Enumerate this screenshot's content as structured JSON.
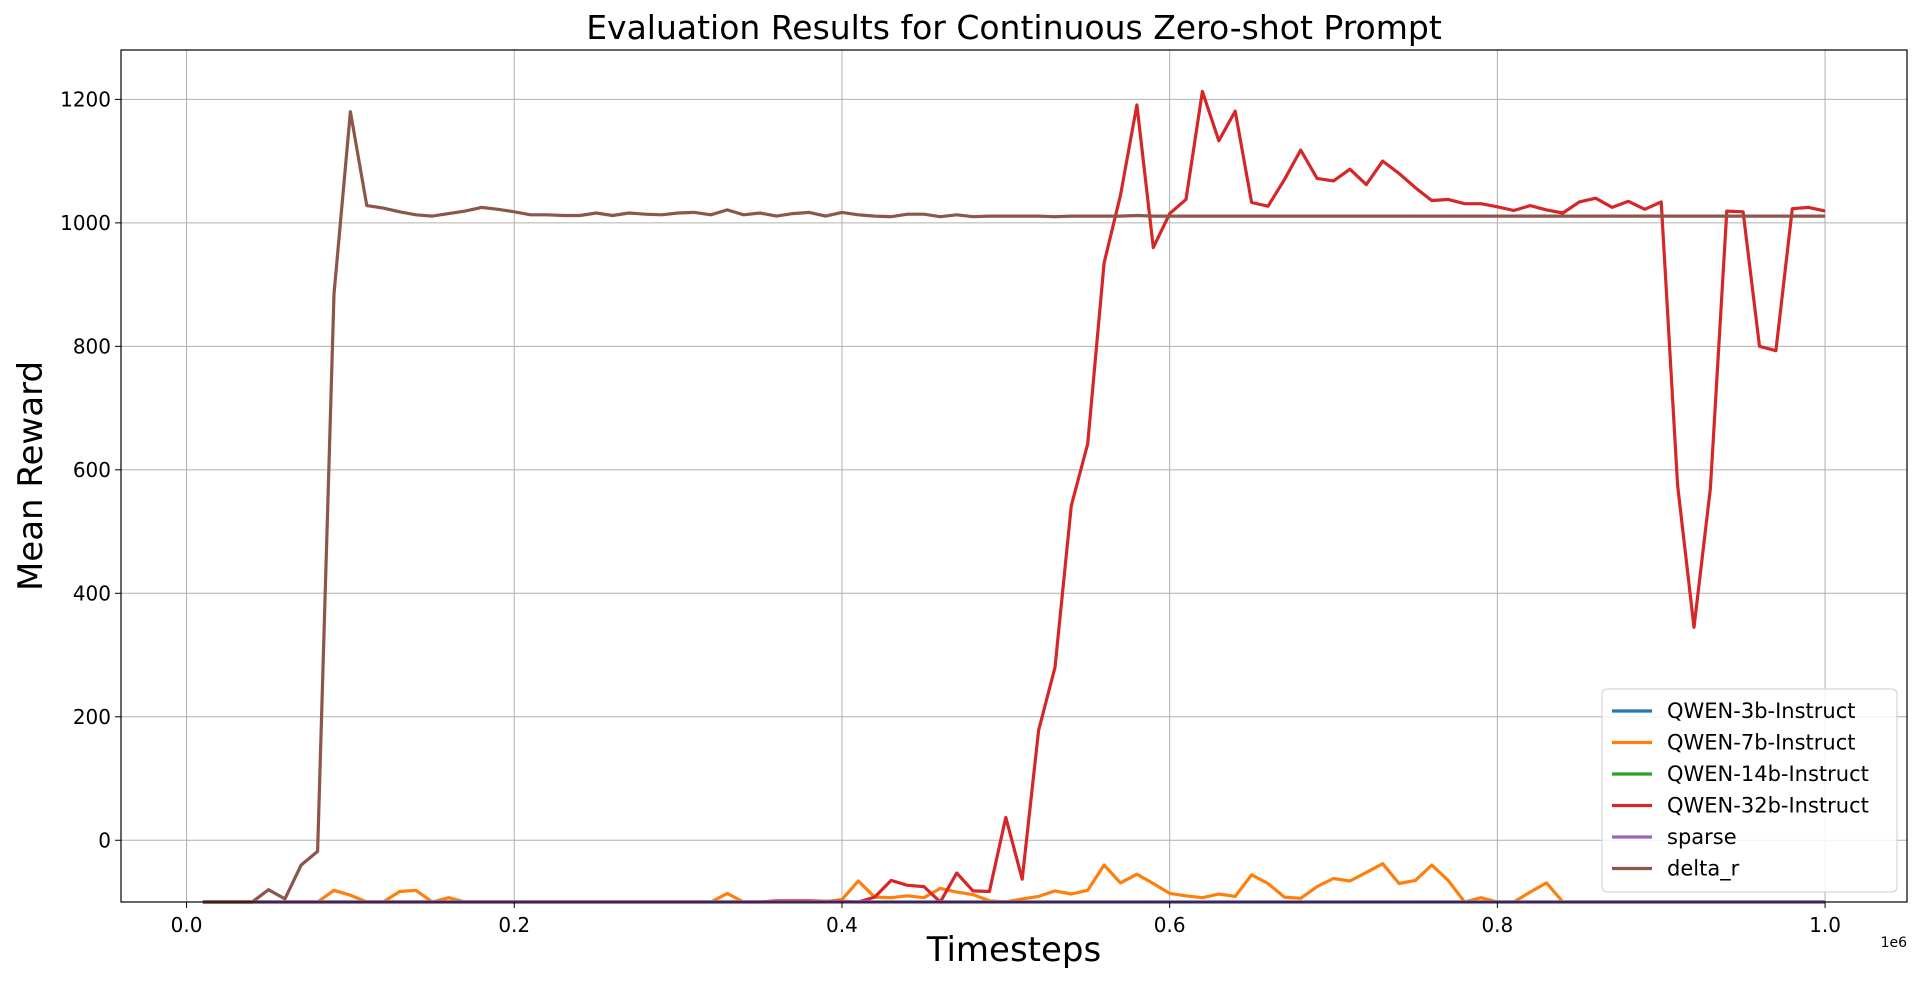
{
  "chart_data": {
    "type": "line",
    "title": "Evaluation Results for Continuous Zero-shot Prompt",
    "xlabel": "Timesteps",
    "ylabel": "Mean Reward",
    "x_offset_label": "1e6",
    "xlim": [
      -0.04,
      1.05
    ],
    "ylim": [
      -100,
      1280
    ],
    "xticks": [
      0.0,
      0.2,
      0.4,
      0.6,
      0.8,
      1.0
    ],
    "xtick_labels": [
      "0.0",
      "0.2",
      "0.4",
      "0.6",
      "0.8",
      "1.0"
    ],
    "yticks": [
      0,
      200,
      400,
      600,
      800,
      1000,
      1200
    ],
    "ytick_labels": [
      "0",
      "200",
      "400",
      "600",
      "800",
      "1000",
      "1200"
    ],
    "grid": true,
    "legend_position": "bottom-right",
    "x": [
      0.01,
      0.02,
      0.03,
      0.04,
      0.05,
      0.06,
      0.07,
      0.08,
      0.09,
      0.1,
      0.11,
      0.12,
      0.13,
      0.14,
      0.15,
      0.16,
      0.17,
      0.18,
      0.19,
      0.2,
      0.21,
      0.22,
      0.23,
      0.24,
      0.25,
      0.26,
      0.27,
      0.28,
      0.29,
      0.3,
      0.31,
      0.32,
      0.33,
      0.34,
      0.35,
      0.36,
      0.37,
      0.38,
      0.39,
      0.4,
      0.41,
      0.42,
      0.43,
      0.44,
      0.45,
      0.46,
      0.47,
      0.48,
      0.49,
      0.5,
      0.51,
      0.52,
      0.53,
      0.54,
      0.55,
      0.56,
      0.57,
      0.58,
      0.59,
      0.6,
      0.61,
      0.62,
      0.63,
      0.64,
      0.65,
      0.66,
      0.67,
      0.68,
      0.69,
      0.7,
      0.71,
      0.72,
      0.73,
      0.74,
      0.75,
      0.76,
      0.77,
      0.78,
      0.79,
      0.8,
      0.81,
      0.82,
      0.83,
      0.84,
      0.85,
      0.86,
      0.87,
      0.88,
      0.89,
      0.9,
      0.91,
      0.92,
      0.93,
      0.94,
      0.95,
      0.96,
      0.97,
      0.98,
      0.99,
      1.0
    ],
    "series": [
      {
        "name": "QWEN-3b-Instruct",
        "color": "#1f77b4",
        "values": [
          -100,
          -100,
          -100,
          -100,
          -100,
          -100,
          -100,
          -100,
          -100,
          -100,
          -100,
          -100,
          -100,
          -100,
          -100,
          -100,
          -100,
          -100,
          -100,
          -100,
          -100,
          -100,
          -100,
          -100,
          -100,
          -100,
          -100,
          -100,
          -100,
          -100,
          -100,
          -100,
          -100,
          -100,
          -100,
          -100,
          -100,
          -100,
          -100,
          -100,
          -100,
          -100,
          -100,
          -100,
          -100,
          -100,
          -100,
          -100,
          -100,
          -100,
          -100,
          -100,
          -100,
          -100,
          -100,
          -100,
          -100,
          -100,
          -100,
          -100,
          -100,
          -100,
          -100,
          -100,
          -100,
          -100,
          -100,
          -100,
          -100,
          -100,
          -100,
          -100,
          -100,
          -100,
          -100,
          -100,
          -100,
          -100,
          -100,
          -100,
          -100,
          -100,
          -100,
          -100,
          -100,
          -100,
          -100,
          -100,
          -100,
          -100,
          -100,
          -100,
          -100,
          -100,
          -100,
          -100,
          -100,
          -100,
          -100,
          -100
        ]
      },
      {
        "name": "QWEN-7b-Instruct",
        "color": "#ff7f0e",
        "values": [
          -100,
          -100,
          -100,
          -100,
          -100,
          -100,
          -100,
          -100,
          -81,
          -89,
          -100,
          -100,
          -83,
          -81,
          -100,
          -93,
          -100,
          -100,
          -100,
          -100,
          -100,
          -100,
          -100,
          -100,
          -100,
          -100,
          -100,
          -100,
          -100,
          -100,
          -100,
          -100,
          -86,
          -100,
          -100,
          -100,
          -100,
          -100,
          -100,
          -96,
          -66,
          -92,
          -93,
          -90,
          -93,
          -78,
          -84,
          -88,
          -98,
          -100,
          -95,
          -91,
          -82,
          -87,
          -81,
          -40,
          -69,
          -55,
          -70,
          -86,
          -90,
          -93,
          -87,
          -91,
          -56,
          -70,
          -92,
          -94,
          -75,
          -62,
          -66,
          -52,
          -38,
          -70,
          -65,
          -40,
          -65,
          -100,
          -93,
          -100,
          -100,
          -84,
          -69,
          -100,
          -100,
          -100,
          -100,
          -100,
          -100,
          -100,
          -100,
          -100,
          -100,
          -100,
          -100,
          -100,
          -100,
          -100,
          -100,
          -100
        ]
      },
      {
        "name": "QWEN-14b-Instruct",
        "color": "#2ca02c",
        "values": [
          -100,
          -100,
          -100,
          -100,
          -100,
          -100,
          -100,
          -100,
          -100,
          -100,
          -100,
          -100,
          -100,
          -100,
          -100,
          -100,
          -100,
          -100,
          -100,
          -100,
          -100,
          -100,
          -100,
          -100,
          -100,
          -100,
          -100,
          -100,
          -100,
          -100,
          -100,
          -100,
          -100,
          -100,
          -100,
          -100,
          -100,
          -100,
          -100,
          -100,
          -100,
          -100,
          -100,
          -100,
          -100,
          -100,
          -100,
          -100,
          -100,
          -100,
          -100,
          -100,
          -100,
          -100,
          -100,
          -100,
          -100,
          -100,
          -100,
          -100,
          -100,
          -100,
          -100,
          -100,
          -100,
          -100,
          -100,
          -100,
          -100,
          -100,
          -100,
          -100,
          -100,
          -100,
          -100,
          -100,
          -100,
          -100,
          -100,
          -100,
          -100,
          -100,
          -100,
          -100,
          -100,
          -100,
          -100,
          -100,
          -100,
          -100,
          -100,
          -100,
          -100,
          -100,
          -100,
          -100,
          -100,
          -100,
          -100,
          -100
        ]
      },
      {
        "name": "QWEN-32b-Instruct",
        "color": "#d62728",
        "values": [
          -100,
          -100,
          -100,
          -100,
          -100,
          -100,
          -100,
          -100,
          -100,
          -100,
          -100,
          -100,
          -100,
          -100,
          -100,
          -100,
          -100,
          -100,
          -100,
          -100,
          -100,
          -100,
          -100,
          -100,
          -100,
          -100,
          -100,
          -100,
          -100,
          -100,
          -100,
          -100,
          -100,
          -100,
          -100,
          -98,
          -98,
          -98,
          -99,
          -99,
          -100,
          -92,
          -65,
          -73,
          -75,
          -100,
          -53,
          -82,
          -83,
          37,
          -63,
          178,
          280,
          542,
          642,
          935,
          1045,
          1191,
          960,
          1015,
          1038,
          1213,
          1133,
          1181,
          1033,
          1027,
          1070,
          1118,
          1072,
          1068,
          1087,
          1062,
          1100,
          1080,
          1057,
          1036,
          1038,
          1031,
          1031,
          1026,
          1020,
          1028,
          1021,
          1016,
          1034,
          1040,
          1025,
          1035,
          1022,
          1034,
          575,
          345,
          570,
          1019,
          1018,
          800,
          793,
          1023,
          1025,
          1019
        ]
      },
      {
        "name": "sparse",
        "color": "#9467bd",
        "values": [
          -100,
          -100,
          -100,
          -100,
          -100,
          -100,
          -100,
          -100,
          -100,
          -100,
          -100,
          -100,
          -100,
          -100,
          -100,
          -100,
          -100,
          -100,
          -100,
          -100,
          -100,
          -100,
          -100,
          -100,
          -100,
          -100,
          -100,
          -100,
          -100,
          -100,
          -100,
          -100,
          -100,
          -100,
          -100,
          -100,
          -100,
          -100,
          -100,
          -100,
          -100,
          -100,
          -100,
          -100,
          -100,
          -100,
          -100,
          -100,
          -100,
          -100,
          -100,
          -100,
          -100,
          -100,
          -100,
          -100,
          -100,
          -100,
          -100,
          -100,
          -100,
          -100,
          -100,
          -100,
          -100,
          -100,
          -100,
          -100,
          -100,
          -100,
          -100,
          -100,
          -100,
          -100,
          -100,
          -100,
          -100,
          -100,
          -100,
          -100,
          -100,
          -100,
          -100,
          -100,
          -100,
          -100,
          -100,
          -100,
          -100,
          -100,
          -100,
          -100,
          -100,
          -100,
          -100,
          -100,
          -100,
          -100,
          -100,
          -100
        ]
      },
      {
        "name": "delta_r",
        "color": "#8c564b",
        "values": [
          -100,
          -100,
          -100,
          -100,
          -80,
          -95,
          -40,
          -18,
          885,
          1180,
          1028,
          1024,
          1018,
          1013,
          1011,
          1015,
          1019,
          1025,
          1022,
          1018,
          1013,
          1013,
          1012,
          1012,
          1016,
          1012,
          1016,
          1014,
          1013,
          1016,
          1017,
          1013,
          1021,
          1013,
          1016,
          1011,
          1015,
          1017,
          1011,
          1017,
          1013,
          1011,
          1010,
          1014,
          1014,
          1010,
          1013,
          1010,
          1011,
          1011,
          1011,
          1011,
          1010,
          1011,
          1011,
          1011,
          1011,
          1012,
          1011,
          1011,
          1011,
          1011,
          1011,
          1011,
          1011,
          1011,
          1011,
          1011,
          1011,
          1011,
          1011,
          1011,
          1011,
          1011,
          1011,
          1011,
          1011,
          1011,
          1011,
          1011,
          1011,
          1011,
          1011,
          1011,
          1011,
          1011,
          1011,
          1011,
          1011,
          1011,
          1011,
          1011,
          1011,
          1011,
          1011,
          1011,
          1011,
          1011,
          1011,
          1011
        ]
      }
    ]
  }
}
